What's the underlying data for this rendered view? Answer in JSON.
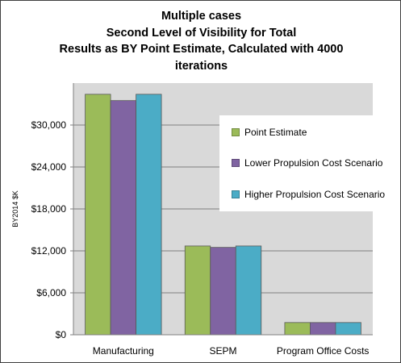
{
  "title_lines": [
    "Multiple cases",
    "Second Level of Visibility for Total",
    "Results as BY Point Estimate, Calculated with 4000",
    "iterations"
  ],
  "colors": {
    "plot_bg": "#d9d9d9",
    "gridline": "#7f7f7f",
    "series": [
      "#9bbb59",
      "#8064a2",
      "#4bacc6"
    ]
  },
  "chart_data": {
    "type": "bar",
    "categories": [
      "Manufacturing",
      "SEPM",
      "Program Office Costs"
    ],
    "series": [
      {
        "name": "Point Estimate",
        "values": [
          34400,
          12700,
          1750
        ]
      },
      {
        "name": "Lower Propulsion Cost Scenario",
        "values": [
          33500,
          12500,
          1750
        ]
      },
      {
        "name": "Higher Propulsion Cost Scenario",
        "values": [
          34400,
          12700,
          1750
        ]
      }
    ],
    "ylabel": "BY2014 $K",
    "ylim": [
      0,
      36000
    ],
    "yticks": [
      0,
      6000,
      12000,
      18000,
      24000,
      30000
    ],
    "ytick_labels": [
      "$0",
      "$6,000",
      "$12,000",
      "$18,000",
      "$24,000",
      "$30,000"
    ],
    "grid": true,
    "legend_position": "right"
  }
}
